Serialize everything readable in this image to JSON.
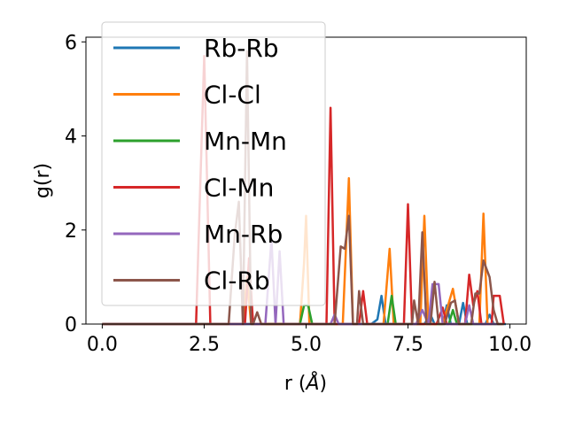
{
  "chart_data": {
    "type": "line",
    "xlabel": "r (",
    "xlabel_unit": "Å",
    "xlabel_close": ")",
    "ylabel": "g(r)",
    "xlim": [
      -0.4,
      10.4
    ],
    "ylim": [
      0,
      6.1
    ],
    "grid": false,
    "legend_position": "upper-left",
    "xticks": [
      0.0,
      2.5,
      5.0,
      7.5,
      10.0
    ],
    "xtick_labels": [
      "0.0",
      "2.5",
      "5.0",
      "7.5",
      "10.0"
    ],
    "yticks": [
      0,
      2,
      4,
      6
    ],
    "ytick_labels": [
      "0",
      "2",
      "4",
      "6"
    ],
    "series": [
      {
        "name": "Rb-Rb",
        "color": "#1f77b4",
        "points": [
          [
            0,
            0
          ],
          [
            6.6,
            0
          ],
          [
            6.75,
            0.1
          ],
          [
            6.85,
            0.6
          ],
          [
            6.95,
            0
          ],
          [
            7.9,
            0
          ],
          [
            8.05,
            0.2
          ],
          [
            8.15,
            0
          ],
          [
            8.35,
            0
          ],
          [
            8.45,
            0.4
          ],
          [
            8.55,
            0
          ],
          [
            8.75,
            0
          ],
          [
            8.85,
            0.45
          ],
          [
            8.95,
            0
          ],
          [
            9.4,
            0
          ],
          [
            9.5,
            0.2
          ],
          [
            9.6,
            0
          ],
          [
            9.9,
            0
          ]
        ]
      },
      {
        "name": "Cl-Cl",
        "color": "#ff7f0e",
        "points": [
          [
            0,
            0
          ],
          [
            3.45,
            0
          ],
          [
            3.55,
            1.0
          ],
          [
            3.65,
            0
          ],
          [
            4.85,
            0
          ],
          [
            4.95,
            1.3
          ],
          [
            5.0,
            2.3
          ],
          [
            5.08,
            0
          ],
          [
            5.9,
            0
          ],
          [
            6.05,
            3.1
          ],
          [
            6.15,
            0
          ],
          [
            6.9,
            0
          ],
          [
            7.05,
            1.6
          ],
          [
            7.15,
            0
          ],
          [
            7.8,
            0
          ],
          [
            7.9,
            2.3
          ],
          [
            8.0,
            0
          ],
          [
            8.35,
            0
          ],
          [
            8.6,
            0.75
          ],
          [
            8.75,
            0
          ],
          [
            9.25,
            0
          ],
          [
            9.35,
            2.35
          ],
          [
            9.45,
            0
          ],
          [
            9.85,
            0
          ]
        ]
      },
      {
        "name": "Mn-Mn",
        "color": "#2ca02c",
        "points": [
          [
            0,
            0
          ],
          [
            4.85,
            0
          ],
          [
            4.95,
            0.4
          ],
          [
            5.05,
            0.4
          ],
          [
            5.15,
            0
          ],
          [
            7.0,
            0
          ],
          [
            7.1,
            0.6
          ],
          [
            7.2,
            0
          ],
          [
            8.5,
            0
          ],
          [
            8.6,
            0.3
          ],
          [
            8.7,
            0
          ],
          [
            9.8,
            0
          ]
        ]
      },
      {
        "name": "Cl-Mn",
        "color": "#d62728",
        "points": [
          [
            0,
            0
          ],
          [
            2.3,
            0
          ],
          [
            2.5,
            5.7
          ],
          [
            2.65,
            0
          ],
          [
            3.5,
            0
          ],
          [
            3.6,
            1.4
          ],
          [
            3.7,
            0
          ],
          [
            5.5,
            0
          ],
          [
            5.6,
            4.6
          ],
          [
            5.7,
            0
          ],
          [
            6.3,
            0
          ],
          [
            6.4,
            0.7
          ],
          [
            6.5,
            0
          ],
          [
            7.4,
            0
          ],
          [
            7.5,
            2.55
          ],
          [
            7.6,
            0
          ],
          [
            8.2,
            0
          ],
          [
            8.35,
            0.35
          ],
          [
            8.45,
            0
          ],
          [
            8.9,
            0
          ],
          [
            9.0,
            1.05
          ],
          [
            9.1,
            0.4
          ],
          [
            9.2,
            0.7
          ],
          [
            9.3,
            0
          ],
          [
            9.55,
            0
          ],
          [
            9.6,
            0.6
          ],
          [
            9.75,
            0.6
          ],
          [
            9.85,
            0
          ]
        ]
      },
      {
        "name": "Mn-Rb",
        "color": "#9467bd",
        "points": [
          [
            0,
            0
          ],
          [
            4.0,
            0
          ],
          [
            4.15,
            1.8
          ],
          [
            4.25,
            0
          ],
          [
            4.35,
            1.55
          ],
          [
            4.45,
            0
          ],
          [
            5.6,
            0
          ],
          [
            5.7,
            0.2
          ],
          [
            5.8,
            0
          ],
          [
            7.7,
            0
          ],
          [
            7.85,
            0.3
          ],
          [
            8.0,
            0
          ],
          [
            8.1,
            0.85
          ],
          [
            8.25,
            0.85
          ],
          [
            8.35,
            0
          ],
          [
            8.9,
            0
          ],
          [
            9.0,
            0.4
          ],
          [
            9.1,
            0
          ],
          [
            9.8,
            0
          ]
        ]
      },
      {
        "name": "Cl-Rb",
        "color": "#8c564b",
        "points": [
          [
            0,
            0
          ],
          [
            3.1,
            0
          ],
          [
            3.25,
            1.9
          ],
          [
            3.35,
            2.6
          ],
          [
            3.45,
            0
          ],
          [
            3.55,
            5.8
          ],
          [
            3.65,
            0
          ],
          [
            3.7,
            0
          ],
          [
            3.8,
            0.25
          ],
          [
            3.9,
            0
          ],
          [
            5.7,
            0
          ],
          [
            5.85,
            1.65
          ],
          [
            5.95,
            1.6
          ],
          [
            6.05,
            2.3
          ],
          [
            6.15,
            0
          ],
          [
            6.25,
            0
          ],
          [
            6.3,
            0.7
          ],
          [
            6.4,
            0
          ],
          [
            7.6,
            0
          ],
          [
            7.65,
            0.5
          ],
          [
            7.75,
            0
          ],
          [
            7.85,
            1.95
          ],
          [
            7.95,
            0
          ],
          [
            8.05,
            0
          ],
          [
            8.15,
            0.9
          ],
          [
            8.25,
            0
          ],
          [
            8.4,
            0
          ],
          [
            8.55,
            0.45
          ],
          [
            8.65,
            0.5
          ],
          [
            8.75,
            0
          ],
          [
            9.05,
            0
          ],
          [
            9.15,
            0.65
          ],
          [
            9.25,
            0.65
          ],
          [
            9.35,
            1.35
          ],
          [
            9.5,
            1.0
          ],
          [
            9.6,
            0.3
          ],
          [
            9.7,
            0
          ],
          [
            9.85,
            0
          ]
        ]
      }
    ]
  }
}
